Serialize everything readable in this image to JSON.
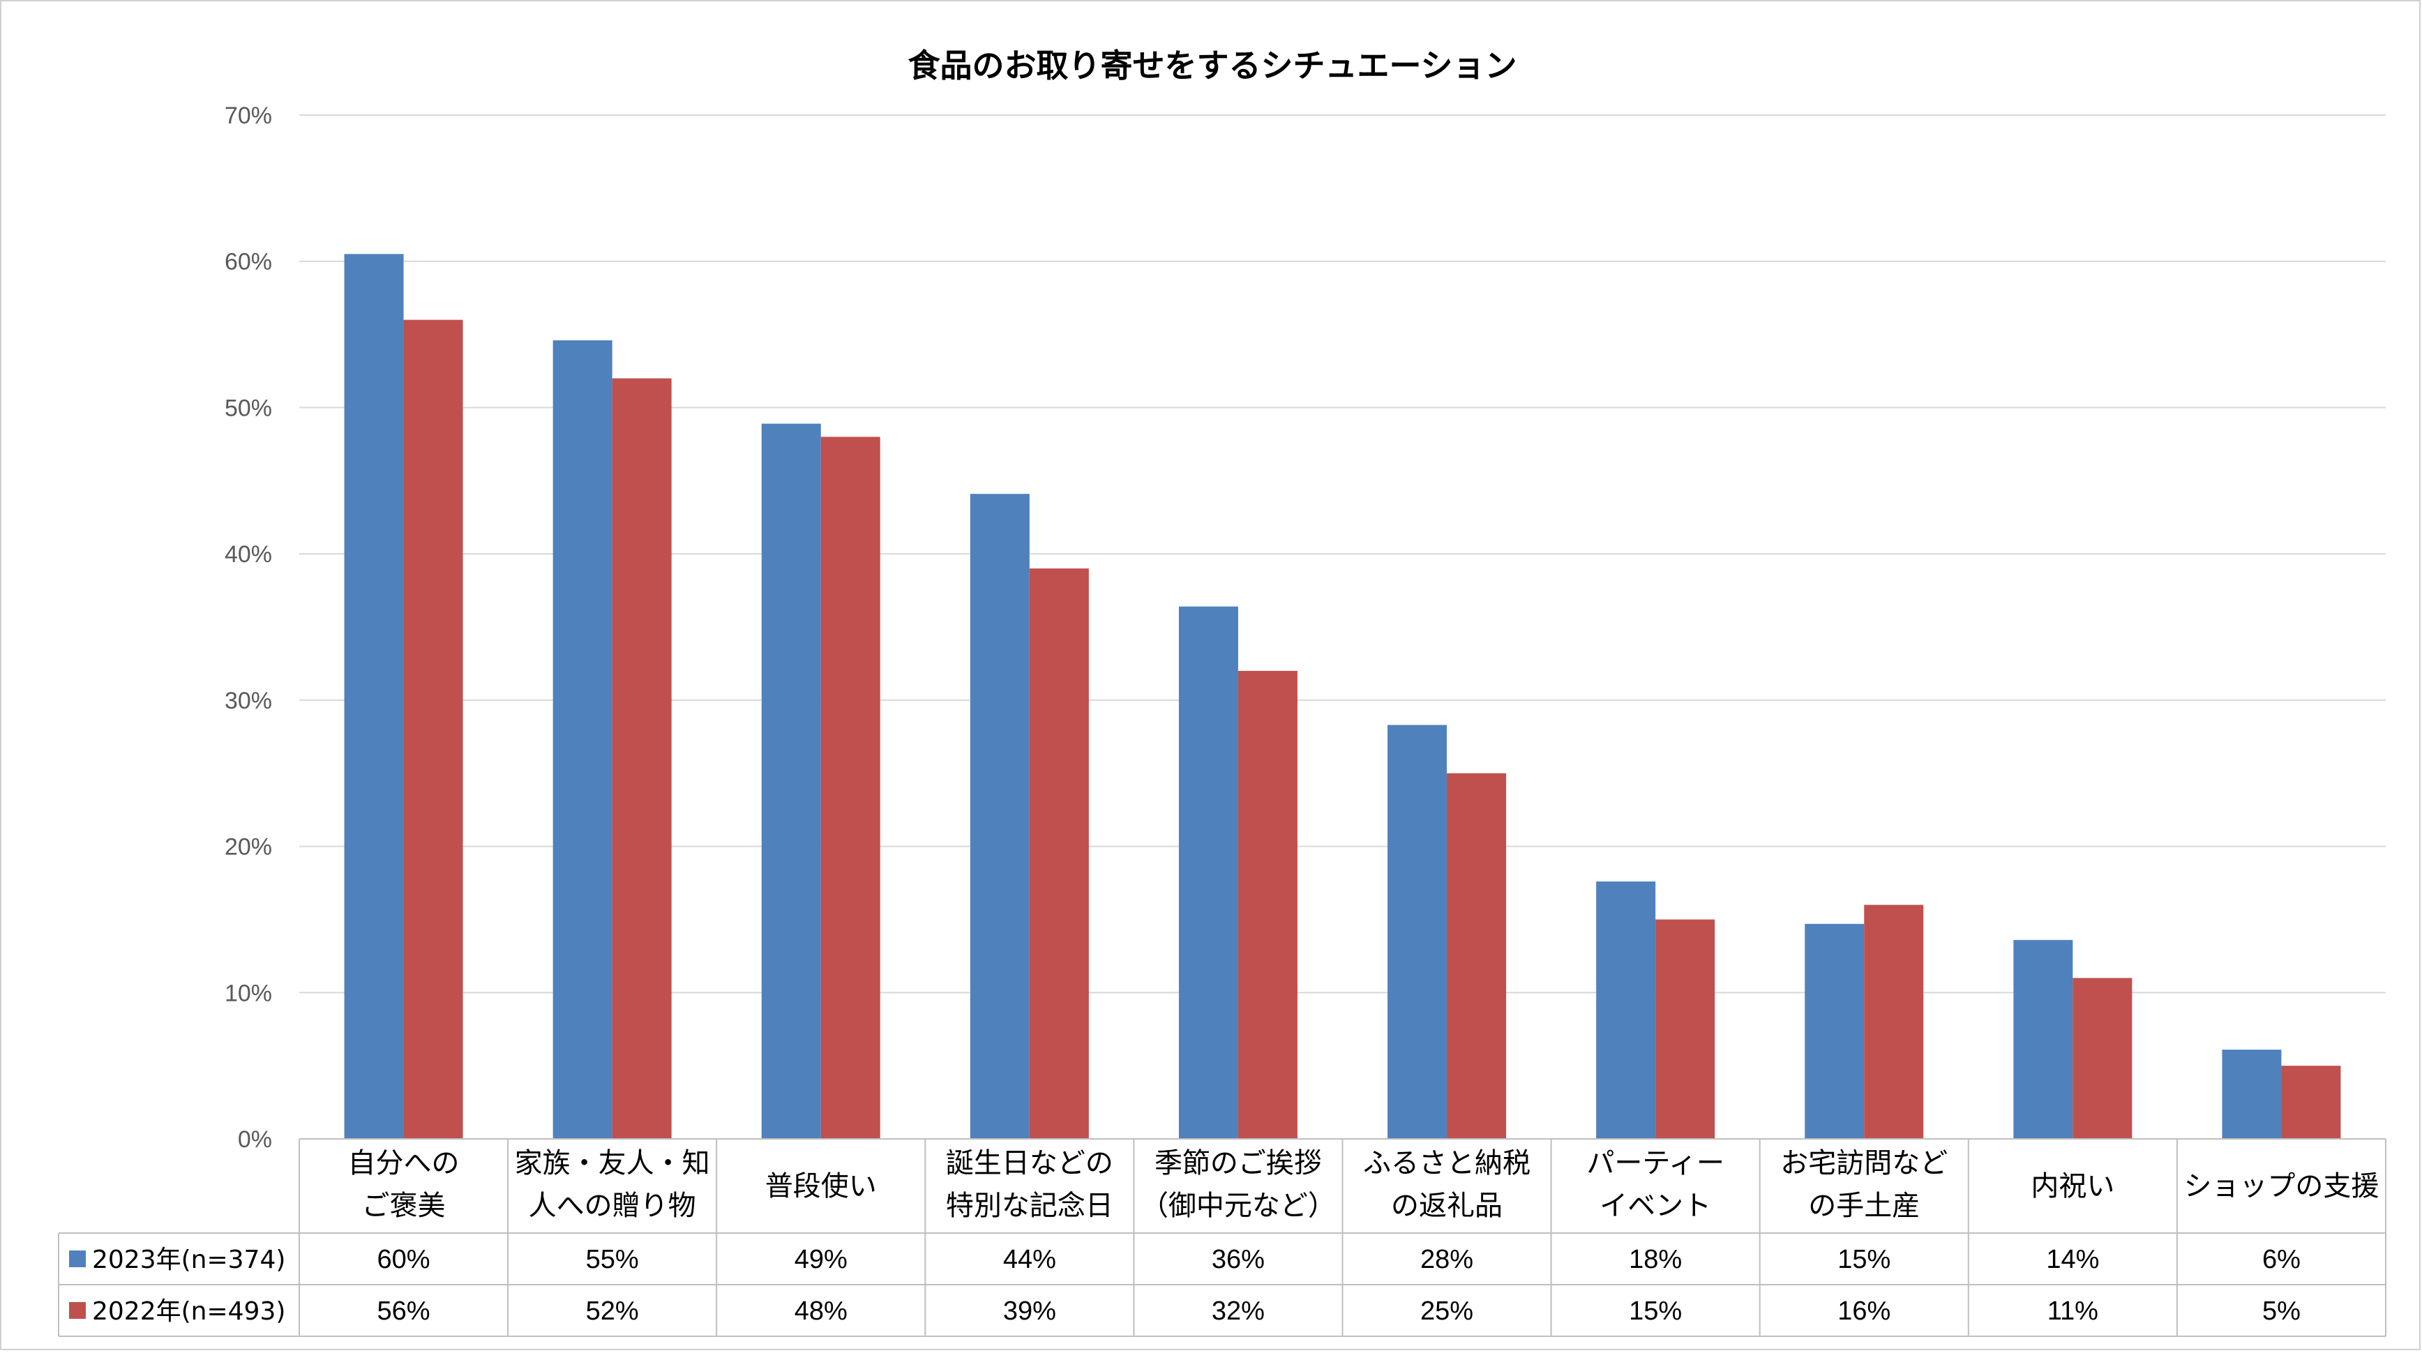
{
  "chart_data": {
    "type": "bar",
    "title": "食品のお取り寄せをするシチュエーション",
    "xlabel": "",
    "ylabel": "",
    "ylim": [
      0,
      70
    ],
    "yticks": [
      0,
      10,
      20,
      30,
      40,
      50,
      60,
      70
    ],
    "ytick_labels": [
      "0%",
      "10%",
      "20%",
      "30%",
      "40%",
      "50%",
      "60%",
      "70%"
    ],
    "grid": true,
    "legend": "bottom-left-data-table",
    "categories": [
      [
        "自分への",
        "ご褒美"
      ],
      [
        "家族・友人・知",
        "人への贈り物"
      ],
      [
        "普段使い"
      ],
      [
        "誕生日などの",
        "特別な記念日"
      ],
      [
        "季節のご挨拶",
        "（御中元など）"
      ],
      [
        "ふるさと納税",
        "の返礼品"
      ],
      [
        "パーティー",
        "イベント"
      ],
      [
        "お宅訪問など",
        "の手土産"
      ],
      [
        "内祝い"
      ],
      [
        "ショップの支援"
      ]
    ],
    "series": [
      {
        "name": "2023年(n=374)",
        "color": "#4F81BD",
        "values": [
          60.5,
          54.6,
          48.9,
          44.1,
          36.4,
          28.3,
          17.6,
          14.7,
          13.6,
          6.1
        ],
        "labels": [
          "60%",
          "55%",
          "49%",
          "44%",
          "36%",
          "28%",
          "18%",
          "15%",
          "14%",
          "6%"
        ]
      },
      {
        "name": "2022年(n=493)",
        "color": "#C0504D",
        "values": [
          56,
          52,
          48,
          39,
          32,
          25,
          15,
          16,
          11,
          5
        ],
        "labels": [
          "56%",
          "52%",
          "48%",
          "39%",
          "32%",
          "25%",
          "15%",
          "16%",
          "11%",
          "5%"
        ]
      }
    ]
  }
}
